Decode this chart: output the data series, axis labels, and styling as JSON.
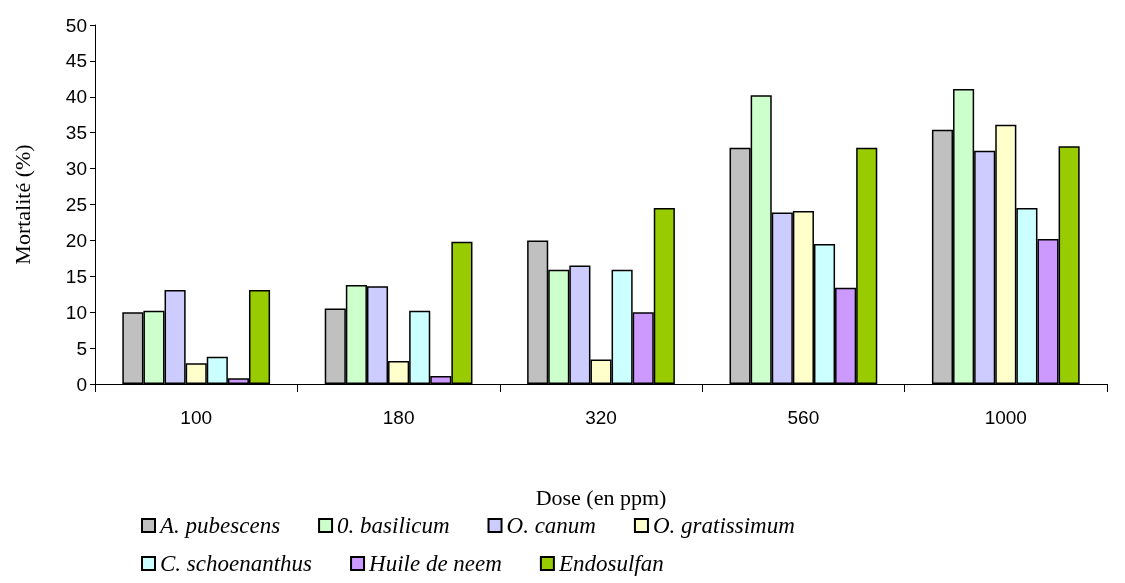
{
  "chart_data": {
    "type": "bar",
    "xlabel": "Dose (en ppm)",
    "ylabel": "Mortalité (%)",
    "categories": [
      "100",
      "180",
      "320",
      "560",
      "1000"
    ],
    "series": [
      {
        "name": "A. pubescens",
        "color": "#c0c0c0",
        "values": [
          10,
          10.5,
          20,
          32.9,
          35.4
        ]
      },
      {
        "name": "0. basilicum",
        "color": "#ccffcc",
        "values": [
          10.2,
          13.8,
          15.9,
          40.2,
          41.1
        ]
      },
      {
        "name": "O. canum",
        "color": "#ccccff",
        "values": [
          13.1,
          13.6,
          16.5,
          23.9,
          32.5
        ]
      },
      {
        "name": "O. gratissimum",
        "color": "#ffffcc",
        "values": [
          2.9,
          3.2,
          3.4,
          24.1,
          36.1
        ]
      },
      {
        "name": "C. schoenanthus",
        "color": "#ccffff",
        "values": [
          3.8,
          10.2,
          15.9,
          19.5,
          24.5
        ]
      },
      {
        "name": "Huile de neem",
        "color": "#cc99ff",
        "values": [
          0.8,
          1.1,
          10,
          13.4,
          20.2
        ]
      },
      {
        "name": "Endosulfan",
        "color": "#99cc00",
        "values": [
          13.1,
          19.8,
          24.5,
          32.9,
          33.1
        ]
      }
    ],
    "ylim": [
      0,
      50
    ],
    "yticks": [
      0,
      5,
      10,
      15,
      20,
      25,
      30,
      35,
      40,
      45,
      50
    ],
    "grid": false,
    "legend": "bottom"
  }
}
